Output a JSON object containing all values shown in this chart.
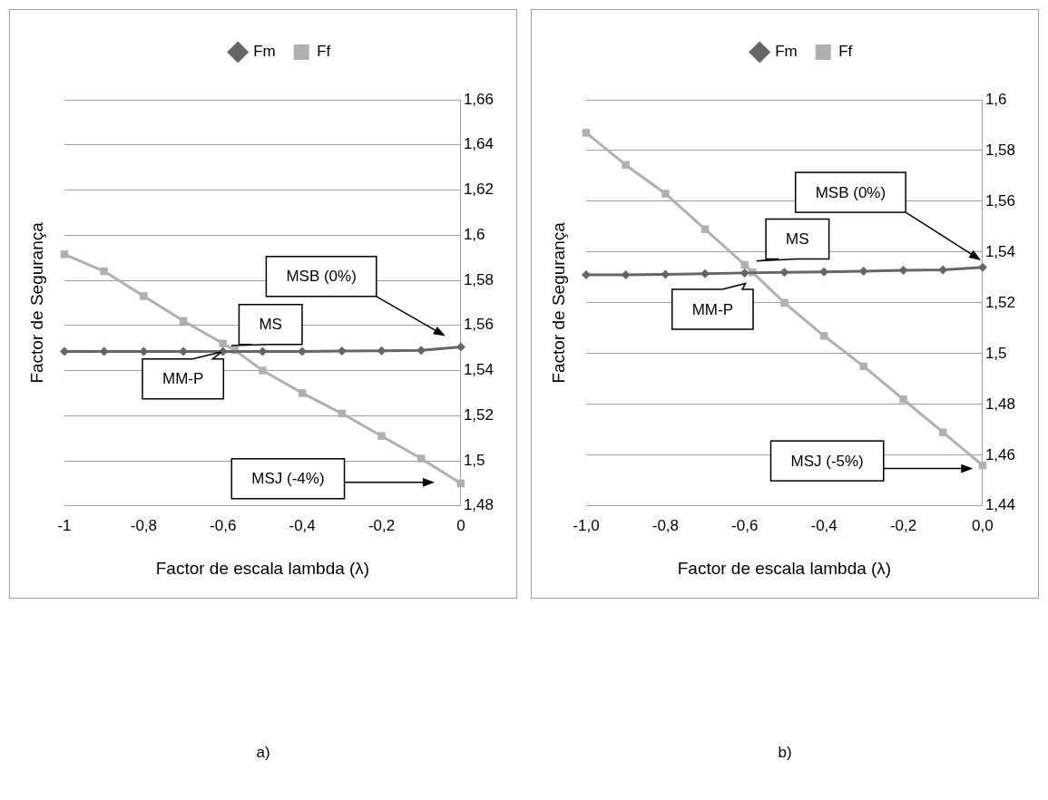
{
  "chart_data": [
    {
      "type": "line",
      "xlabel": "Factor de escala lambda (λ)",
      "ylabel": "Factor de Segurança",
      "legend": "top",
      "grid": "y",
      "xlim": [
        -1,
        0
      ],
      "xticks": [
        {
          "value": -1,
          "label": "-1"
        },
        {
          "value": -0.8,
          "label": "-0,8"
        },
        {
          "value": -0.6,
          "label": "-0,6"
        },
        {
          "value": -0.4,
          "label": "-0,4"
        },
        {
          "value": -0.2,
          "label": "-0,2"
        },
        {
          "value": 0,
          "label": "0"
        }
      ],
      "ylim": [
        1.48,
        1.66
      ],
      "yticks": [
        {
          "value": 1.48,
          "label": "1,48"
        },
        {
          "value": 1.5,
          "label": "1,5"
        },
        {
          "value": 1.52,
          "label": "1,52"
        },
        {
          "value": 1.54,
          "label": "1,54"
        },
        {
          "value": 1.56,
          "label": "1,56"
        },
        {
          "value": 1.58,
          "label": "1,58"
        },
        {
          "value": 1.6,
          "label": "1,6"
        },
        {
          "value": 1.62,
          "label": "1,62"
        },
        {
          "value": 1.64,
          "label": "1,64"
        },
        {
          "value": 1.66,
          "label": "1,66"
        }
      ],
      "series": [
        {
          "name": "Fm",
          "color": "#666666",
          "marker": "diamond",
          "x": [
            -1,
            -0.9,
            -0.8,
            -0.7,
            -0.6,
            -0.5,
            -0.4,
            -0.3,
            -0.2,
            -0.1,
            0
          ],
          "values": [
            1.5485,
            1.5485,
            1.5485,
            1.5485,
            1.5485,
            1.5485,
            1.5485,
            1.5487,
            1.5488,
            1.549,
            1.5505
          ]
        },
        {
          "name": "Ff",
          "color": "#b0b0b0",
          "marker": "square",
          "x": [
            -1,
            -0.9,
            -0.8,
            -0.7,
            -0.6,
            -0.57,
            -0.5,
            -0.4,
            -0.3,
            -0.2,
            -0.1,
            0
          ],
          "values": [
            1.5915,
            1.584,
            1.573,
            1.562,
            1.552,
            1.549,
            1.54,
            1.53,
            1.521,
            1.511,
            1.501,
            1.49
          ]
        }
      ],
      "annotations": [
        "MSB (0%)",
        "MS",
        "MM-P",
        "MSJ (-4%)",
        "a)"
      ]
    },
    {
      "type": "line",
      "xlabel": "Factor de escala lambda (λ)",
      "ylabel": "Factor de Segurança",
      "legend": "top",
      "grid": "y",
      "xlim": [
        -1,
        0
      ],
      "xticks": [
        {
          "value": -1,
          "label": "-1,0"
        },
        {
          "value": -0.8,
          "label": "-0,8"
        },
        {
          "value": -0.6,
          "label": "-0,6"
        },
        {
          "value": -0.4,
          "label": "-0,4"
        },
        {
          "value": -0.2,
          "label": "-0,2"
        },
        {
          "value": 0,
          "label": "0,0"
        }
      ],
      "ylim": [
        1.44,
        1.6
      ],
      "yticks": [
        {
          "value": 1.44,
          "label": "1,44"
        },
        {
          "value": 1.46,
          "label": "1,46"
        },
        {
          "value": 1.48,
          "label": "1,48"
        },
        {
          "value": 1.5,
          "label": "1,5"
        },
        {
          "value": 1.52,
          "label": "1,52"
        },
        {
          "value": 1.54,
          "label": "1,54"
        },
        {
          "value": 1.56,
          "label": "1,56"
        },
        {
          "value": 1.58,
          "label": "1,58"
        },
        {
          "value": 1.6,
          "label": "1,6"
        }
      ],
      "series": [
        {
          "name": "Fm",
          "color": "#666666",
          "marker": "diamond",
          "x": [
            -1,
            -0.9,
            -0.8,
            -0.7,
            -0.6,
            -0.5,
            -0.4,
            -0.3,
            -0.2,
            -0.1,
            0
          ],
          "values": [
            1.531,
            1.531,
            1.5312,
            1.5315,
            1.5318,
            1.532,
            1.5322,
            1.5325,
            1.5328,
            1.533,
            1.534
          ]
        },
        {
          "name": "Ff",
          "color": "#b0b0b0",
          "marker": "square",
          "x": [
            -1,
            -0.9,
            -0.8,
            -0.7,
            -0.6,
            -0.58,
            -0.5,
            -0.4,
            -0.3,
            -0.2,
            -0.1,
            0
          ],
          "values": [
            1.587,
            1.5743,
            1.563,
            1.549,
            1.535,
            1.532,
            1.52,
            1.507,
            1.495,
            1.482,
            1.469,
            1.456
          ]
        }
      ],
      "annotations": [
        "MSB (0%)",
        "MS",
        "MM-P",
        "MSJ (-5%)",
        "b)"
      ]
    }
  ]
}
